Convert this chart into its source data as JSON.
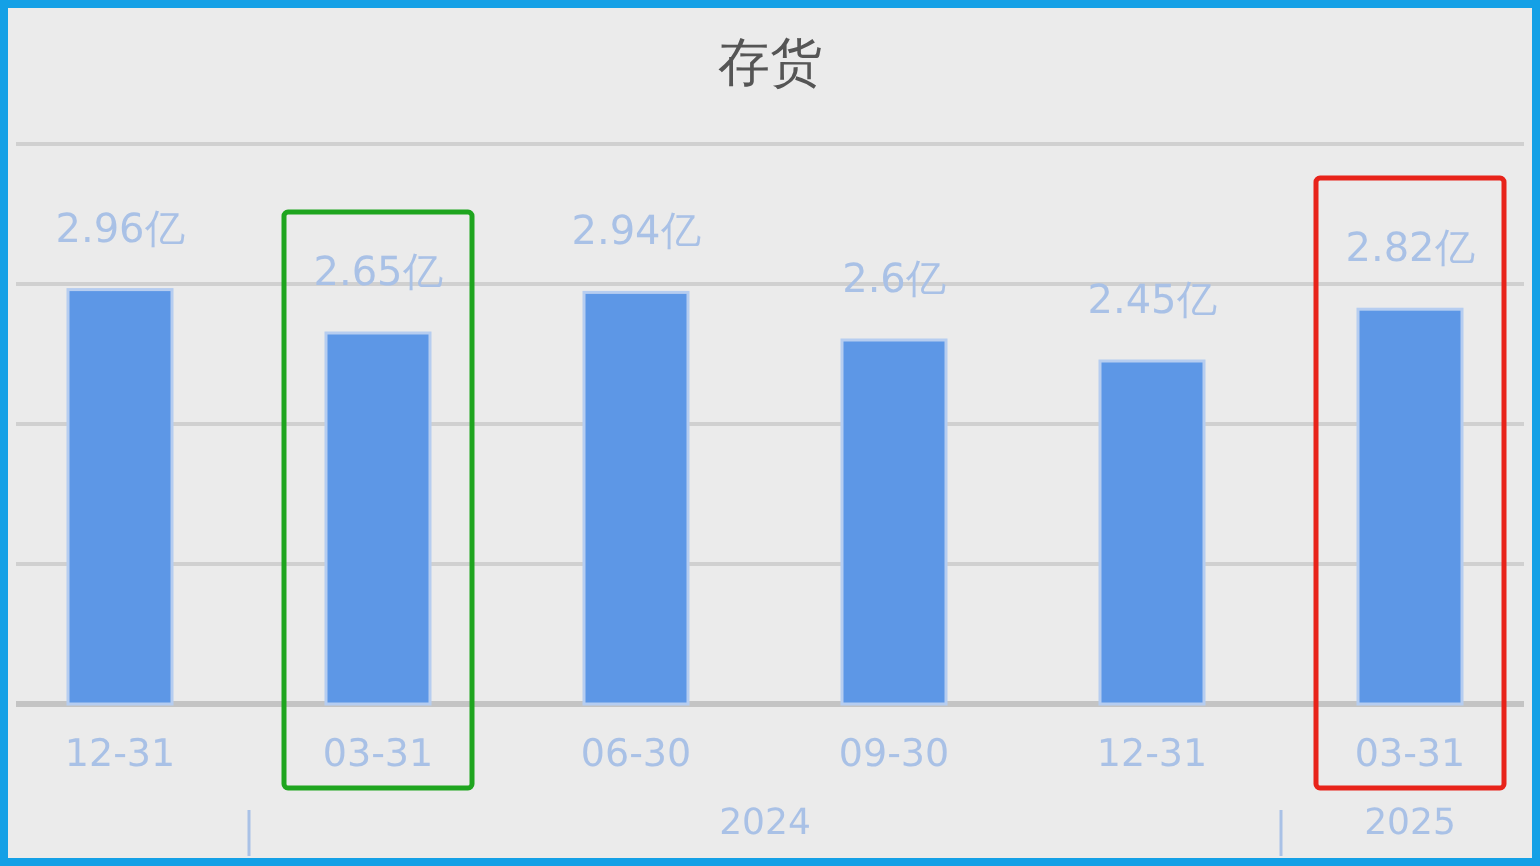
{
  "chart_data": {
    "type": "bar",
    "title": "存货",
    "categories": [
      "12-31",
      "03-31",
      "06-30",
      "09-30",
      "12-31",
      "03-31"
    ],
    "values": [
      2.96,
      2.65,
      2.94,
      2.6,
      2.45,
      2.82
    ],
    "value_labels": [
      "2.96亿",
      "2.65亿",
      "2.94亿",
      "2.6亿",
      "2.45亿",
      "2.82亿"
    ],
    "color": "#5d97e6",
    "ylim": [
      0,
      4
    ],
    "yticks": [
      {
        "value": 0,
        "label": null
      },
      {
        "value": 1,
        "label": null
      },
      {
        "value": 2,
        "label": null
      },
      {
        "value": 3,
        "label": null
      },
      {
        "value": 4,
        "label": null
      }
    ],
    "grid": "y",
    "tick_labels": "x",
    "annotations": [
      "2024",
      "2025"
    ]
  }
}
